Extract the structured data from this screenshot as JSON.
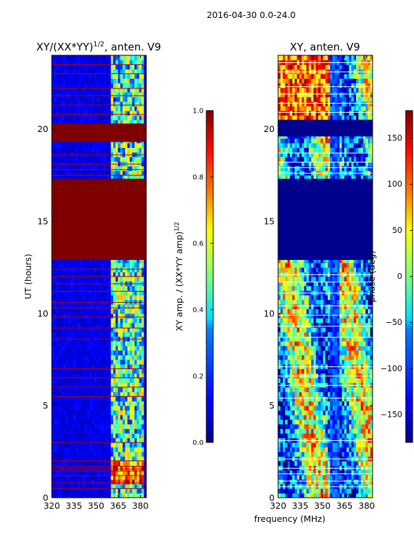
{
  "suptitle": "2016-04-30 0.0-24.0",
  "shared_xlabel": "frequency (MHz)",
  "chart_data": [
    {
      "type": "heatmap",
      "title": "XY/(XX*YY)",
      "title_exponent": "1/2",
      "title_suffix": ", anten. V9",
      "ylabel": "UT (hours)",
      "xlim": [
        320,
        384
      ],
      "ylim": [
        0,
        24
      ],
      "xticks": [
        320,
        335,
        350,
        365,
        380
      ],
      "yticks": [
        0,
        5,
        10,
        15,
        20
      ],
      "colormap": "jet",
      "colorbar": {
        "label": "XY amp. / (XX*YY amp)",
        "label_exponent": "1/2",
        "range": [
          0.0,
          1.0
        ],
        "ticks": [
          "0.0",
          "0.2",
          "0.4",
          "0.6",
          "0.8",
          "1.0"
        ]
      },
      "saturated_bands_hours": [
        [
          19.3,
          20.3
        ],
        [
          12.9,
          17.3
        ]
      ],
      "flag_lines_hours": [
        0.5,
        0.8,
        1.2,
        1.45,
        1.55,
        1.7,
        2.0,
        3.0,
        5.5,
        6.0,
        6.5,
        7.0,
        8.6,
        9.2,
        9.8,
        10.3,
        10.6,
        11.2,
        11.6,
        12.0,
        12.4,
        17.5,
        17.8,
        18.1,
        18.6,
        20.8,
        21.3,
        21.8,
        22.2,
        23.0,
        23.5
      ]
    },
    {
      "type": "heatmap",
      "title": "XY, anten. V9",
      "ylabel": "phase (deg)",
      "xlim": [
        320,
        384
      ],
      "ylim": [
        0,
        24
      ],
      "xticks": [
        320,
        335,
        350,
        365,
        380
      ],
      "yticks": [
        0,
        5,
        10,
        15,
        20
      ],
      "colormap": "jet",
      "colorbar": {
        "label": "phase (deg)",
        "range": [
          -180,
          180
        ],
        "ticks": [
          "−150",
          "−100",
          "−50",
          "0",
          "50",
          "100",
          "150"
        ]
      },
      "flat_bands_hours": [
        [
          19.6,
          20.5
        ],
        [
          12.9,
          17.3
        ]
      ],
      "flag_lines_hours": [
        0.6,
        0.9,
        1.3,
        1.6,
        2.1,
        3.1,
        5.4,
        6.1,
        6.6,
        7.1,
        8.7,
        9.3,
        9.9,
        10.4,
        11.1,
        11.7,
        12.1,
        17.6,
        17.9,
        18.2,
        18.7,
        20.9,
        21.4,
        21.9,
        22.3,
        23.1,
        23.6
      ]
    }
  ]
}
